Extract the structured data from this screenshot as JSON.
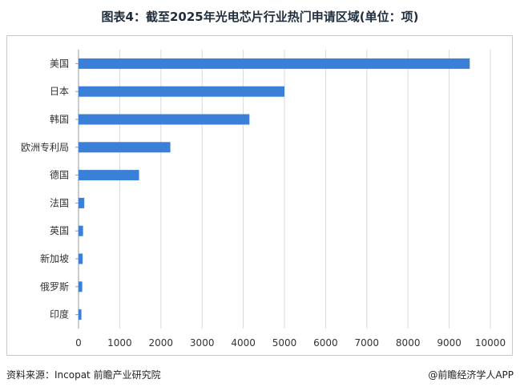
{
  "title": "图表4：截至2025年光电芯片行业热门申请区域(单位：项)",
  "footer": {
    "source": "资料来源：Incopat 前瞻产业研究院",
    "brand": "@前瞻经济学人APP"
  },
  "colors": {
    "bar": "#3a7fd8",
    "grid": "#d9d9d9",
    "axis": "#999999",
    "text": "#333333"
  },
  "chart_data": {
    "type": "bar",
    "orientation": "horizontal",
    "categories": [
      "美国",
      "日本",
      "韩国",
      "欧洲专利局",
      "德国",
      "法国",
      "英国",
      "新加坡",
      "俄罗斯",
      "印度"
    ],
    "values": [
      9500,
      5000,
      4150,
      2230,
      1470,
      140,
      110,
      100,
      90,
      70
    ],
    "xlim": [
      0,
      10000
    ],
    "xticks": [
      0,
      1000,
      2000,
      3000,
      4000,
      5000,
      6000,
      7000,
      8000,
      9000,
      10000
    ],
    "grid": true,
    "legend": "none"
  }
}
